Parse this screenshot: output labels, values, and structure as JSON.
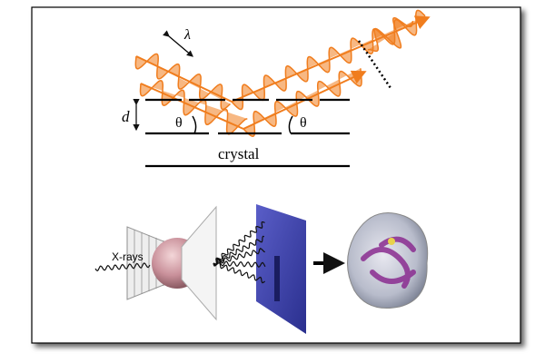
{
  "labels": {
    "wavelength": "λ",
    "spacing": "d",
    "angle_in": "θ",
    "angle_out": "θ",
    "crystal": "crystal",
    "xrays": "X-rays"
  }
}
